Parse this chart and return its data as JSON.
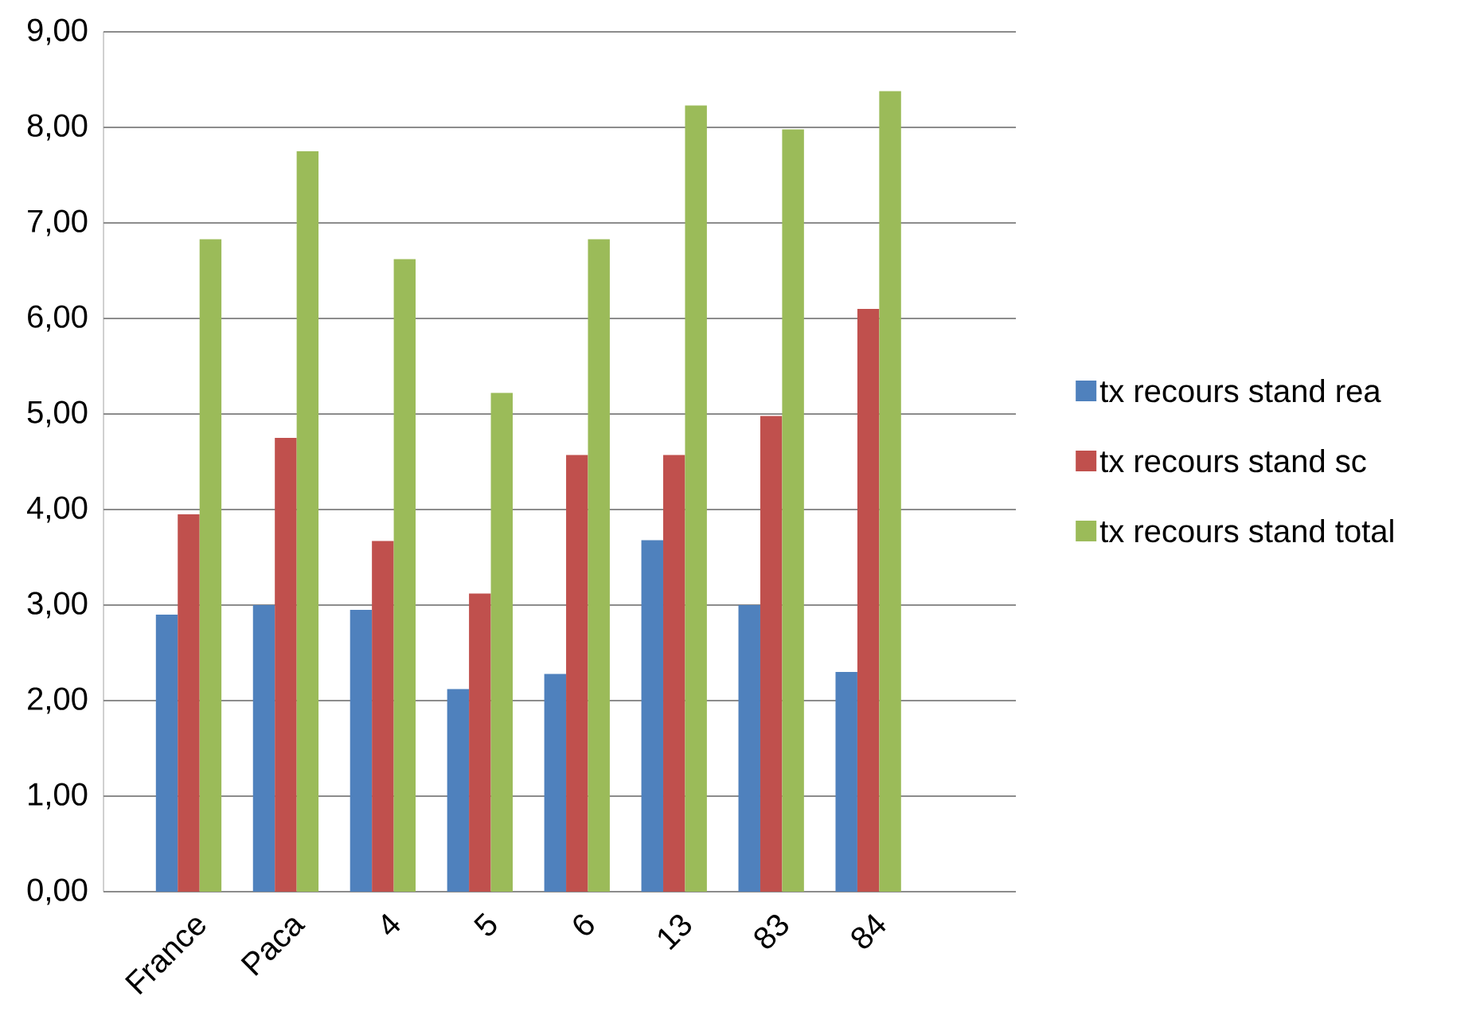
{
  "chart_data": {
    "type": "bar",
    "categories": [
      "France",
      "Paca",
      "4",
      "5",
      "6",
      "13",
      "83",
      "84"
    ],
    "series": [
      {
        "name": "tx recours stand rea",
        "color": "#4f81bd",
        "values": [
          2.9,
          3.0,
          2.95,
          2.12,
          2.28,
          3.68,
          3.0,
          2.3
        ]
      },
      {
        "name": "tx recours stand sc",
        "color": "#c0504d",
        "values": [
          3.95,
          4.75,
          3.67,
          3.12,
          4.57,
          4.57,
          4.98,
          6.1
        ]
      },
      {
        "name": "tx recours stand total",
        "color": "#9bbb59",
        "values": [
          6.83,
          7.75,
          6.62,
          5.22,
          6.83,
          8.23,
          7.98,
          8.38
        ]
      }
    ],
    "ylim": [
      0,
      9
    ],
    "yticks": [
      {
        "value": 0,
        "label": "0,00"
      },
      {
        "value": 1,
        "label": "1,00"
      },
      {
        "value": 2,
        "label": "2,00"
      },
      {
        "value": 3,
        "label": "3,00"
      },
      {
        "value": 4,
        "label": "4,00"
      },
      {
        "value": 5,
        "label": "5,00"
      },
      {
        "value": 6,
        "label": "6,00"
      },
      {
        "value": 7,
        "label": "7,00"
      },
      {
        "value": 8,
        "label": "8,00"
      },
      {
        "value": 9,
        "label": "9,00"
      }
    ],
    "grid": "y",
    "legend": "right"
  }
}
